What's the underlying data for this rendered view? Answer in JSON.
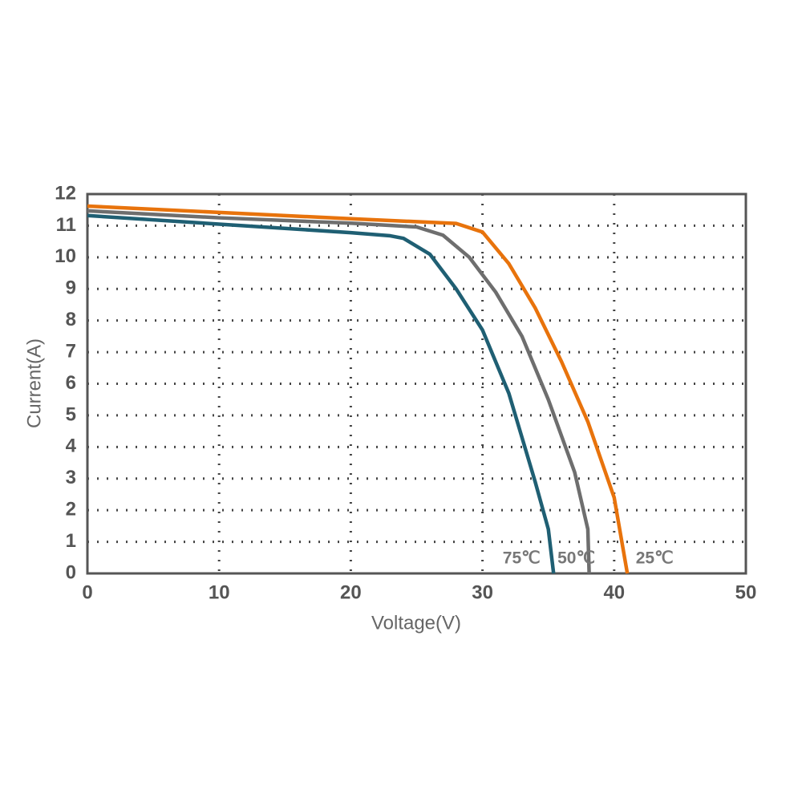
{
  "chart_data": {
    "type": "line",
    "xlabel": "Voltage(V)",
    "ylabel": "Current(A)",
    "xlim": [
      0,
      50
    ],
    "ylim": [
      0,
      12
    ],
    "xticks": [
      0,
      10,
      20,
      30,
      40,
      50
    ],
    "yticks": [
      0,
      1,
      2,
      3,
      4,
      5,
      6,
      7,
      8,
      9,
      10,
      11,
      12
    ],
    "grid": true,
    "series": [
      {
        "name": "75℃",
        "color": "#1f5f73",
        "x": [
          0,
          10,
          20,
          23,
          24,
          26,
          28,
          30,
          32,
          34,
          35,
          35.4
        ],
        "values": [
          11.32,
          11.05,
          10.78,
          10.68,
          10.6,
          10.1,
          9.0,
          7.7,
          5.7,
          2.9,
          1.4,
          0
        ]
      },
      {
        "name": "50℃",
        "color": "#6e6e6e",
        "x": [
          0,
          10,
          20,
          25,
          27,
          29,
          31,
          33,
          35,
          37,
          38,
          38.1
        ],
        "values": [
          11.47,
          11.25,
          11.08,
          10.96,
          10.7,
          10.0,
          8.9,
          7.5,
          5.5,
          3.2,
          1.4,
          0
        ]
      },
      {
        "name": "25℃",
        "color": "#e8730c",
        "x": [
          0,
          10,
          20,
          28,
          30,
          32,
          34,
          36,
          38,
          40,
          41
        ],
        "values": [
          11.62,
          11.42,
          11.22,
          11.07,
          10.8,
          9.8,
          8.4,
          6.7,
          4.8,
          2.4,
          0
        ]
      }
    ]
  }
}
